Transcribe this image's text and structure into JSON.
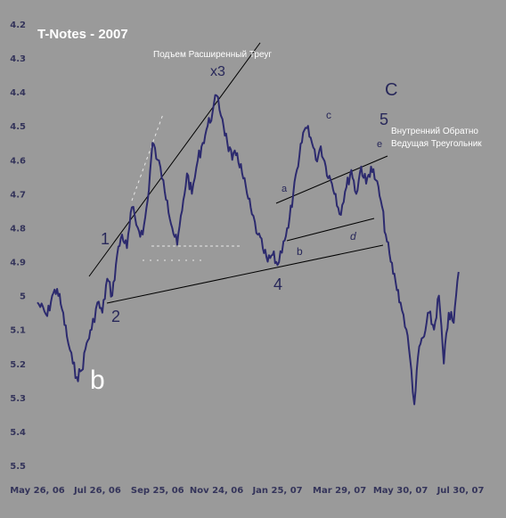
{
  "chart_data": {
    "type": "line",
    "title": "T-Notes - 2007",
    "y_axis": {
      "ticks": [
        "4.2",
        "4.3",
        "4.4",
        "4.5",
        "4.6",
        "4.7",
        "4.8",
        "4.9",
        "5",
        "5.1",
        "5.2",
        "5.3",
        "5.4",
        "5.5"
      ],
      "ylim": [
        4.2,
        5.5
      ],
      "inverted": true
    },
    "x_axis": {
      "ticks": [
        "May 26, 06",
        "Jul 26, 06",
        "Sep 25, 06",
        "Nov 24, 06",
        "Jan 25, 07",
        "Mar 29, 07",
        "May 30, 07",
        "Jul 30, 07"
      ]
    },
    "grid": false,
    "series": [
      {
        "color": "#2c2a6e",
        "points": [
          [
            "May 26, 06",
            5.02
          ],
          [
            "Jun 5, 06",
            5.06
          ],
          [
            "Jun 10, 06",
            5.0
          ],
          [
            "Jun 15, 06",
            4.98
          ],
          [
            "Jun 20, 06",
            5.04
          ],
          [
            "Jun 25, 06",
            5.12
          ],
          [
            "Jul 1, 06",
            5.2
          ],
          [
            "Jul 5, 06",
            5.24
          ],
          [
            "Jul 10, 06",
            5.22
          ],
          [
            "Jul 15, 06",
            5.14
          ],
          [
            "Jul 20, 06",
            5.1
          ],
          [
            "Jul 26, 06",
            5.02
          ],
          [
            "Jul 31, 06",
            5.05
          ],
          [
            "Aug 5, 06",
            4.95
          ],
          [
            "Aug 10, 06",
            5.0
          ],
          [
            "Aug 15, 06",
            4.88
          ],
          [
            "Aug 20, 06",
            4.82
          ],
          [
            "Aug 25, 06",
            4.86
          ],
          [
            "Aug 30, 06",
            4.74
          ],
          [
            "Sep 5, 06",
            4.8
          ],
          [
            "Sep 10, 06",
            4.82
          ],
          [
            "Sep 15, 06",
            4.72
          ],
          [
            "Sep 20, 06",
            4.55
          ],
          [
            "Sep 25, 06",
            4.6
          ],
          [
            "Oct 1, 06",
            4.66
          ],
          [
            "Oct 5, 06",
            4.72
          ],
          [
            "Oct 10, 06",
            4.8
          ],
          [
            "Oct 15, 06",
            4.85
          ],
          [
            "Oct 20, 06",
            4.75
          ],
          [
            "Oct 25, 06",
            4.64
          ],
          [
            "Oct 30, 06",
            4.7
          ],
          [
            "Nov 5, 06",
            4.6
          ],
          [
            "Nov 10, 06",
            4.55
          ],
          [
            "Nov 15, 06",
            4.5
          ],
          [
            "Nov 20, 06",
            4.46
          ],
          [
            "Nov 24, 06",
            4.41
          ],
          [
            "Nov 30, 06",
            4.48
          ],
          [
            "Dec 5, 06",
            4.55
          ],
          [
            "Dec 10, 06",
            4.6
          ],
          [
            "Dec 15, 06",
            4.58
          ],
          [
            "Dec 20, 06",
            4.64
          ],
          [
            "Dec 25, 06",
            4.7
          ],
          [
            "Dec 30, 06",
            4.76
          ],
          [
            "Jan 5, 07",
            4.82
          ],
          [
            "Jan 10, 07",
            4.86
          ],
          [
            "Jan 15, 07",
            4.9
          ],
          [
            "Jan 20, 07",
            4.88
          ],
          [
            "Jan 25, 07",
            4.91
          ],
          [
            "Jan 31, 07",
            4.84
          ],
          [
            "Feb 5, 07",
            4.8
          ],
          [
            "Feb 10, 07",
            4.7
          ],
          [
            "Feb 15, 07",
            4.62
          ],
          [
            "Feb 20, 07",
            4.52
          ],
          [
            "Feb 25, 07",
            4.5
          ],
          [
            "Mar 1, 07",
            4.55
          ],
          [
            "Mar 5, 07",
            4.6
          ],
          [
            "Mar 10, 07",
            4.56
          ],
          [
            "Mar 15, 07",
            4.62
          ],
          [
            "Mar 20, 07",
            4.66
          ],
          [
            "Mar 25, 07",
            4.7
          ],
          [
            "Mar 29, 07",
            4.76
          ],
          [
            "Apr 5, 07",
            4.68
          ],
          [
            "Apr 10, 07",
            4.63
          ],
          [
            "Apr 15, 07",
            4.7
          ],
          [
            "Apr 20, 07",
            4.62
          ],
          [
            "Apr 25, 07",
            4.67
          ],
          [
            "Apr 30, 07",
            4.62
          ],
          [
            "May 5, 07",
            4.66
          ],
          [
            "May 10, 07",
            4.72
          ],
          [
            "May 15, 07",
            4.82
          ],
          [
            "May 20, 07",
            4.9
          ],
          [
            "May 25, 07",
            4.96
          ],
          [
            "May 30, 07",
            5.02
          ],
          [
            "Jun 5, 07",
            5.1
          ],
          [
            "Jun 10, 07",
            5.22
          ],
          [
            "Jun 13, 07",
            5.32
          ],
          [
            "Jun 18, 07",
            5.15
          ],
          [
            "Jun 23, 07",
            5.12
          ],
          [
            "Jun 28, 07",
            5.05
          ],
          [
            "Jul 3, 07",
            5.1
          ],
          [
            "Jul 8, 07",
            5.0
          ],
          [
            "Jul 13, 07",
            5.2
          ],
          [
            "Jul 18, 07",
            5.05
          ],
          [
            "Jul 23, 07",
            5.08
          ],
          [
            "Jul 28, 07",
            4.93
          ]
        ]
      }
    ],
    "annotations": [
      {
        "text": "T-Notes - 2007",
        "kind": "title"
      },
      {
        "text": "Подъем Расширенный Треуг",
        "kind": "note"
      },
      {
        "text": "x3",
        "kind": "wave"
      },
      {
        "text": "C",
        "kind": "wave-major"
      },
      {
        "text": "5",
        "kind": "wave"
      },
      {
        "text": "c",
        "kind": "wave-small"
      },
      {
        "text": "e",
        "kind": "wave-small"
      },
      {
        "text": "Внутренний Обратно",
        "kind": "note"
      },
      {
        "text": "Ведущая Треугольник",
        "kind": "note"
      },
      {
        "text": "a",
        "kind": "wave-small"
      },
      {
        "text": "d",
        "kind": "wave-small"
      },
      {
        "text": "b",
        "kind": "wave-small"
      },
      {
        "text": "1",
        "kind": "wave"
      },
      {
        "text": "2",
        "kind": "wave"
      },
      {
        "text": "4",
        "kind": "wave"
      },
      {
        "text": "b",
        "kind": "wave-major"
      }
    ]
  }
}
